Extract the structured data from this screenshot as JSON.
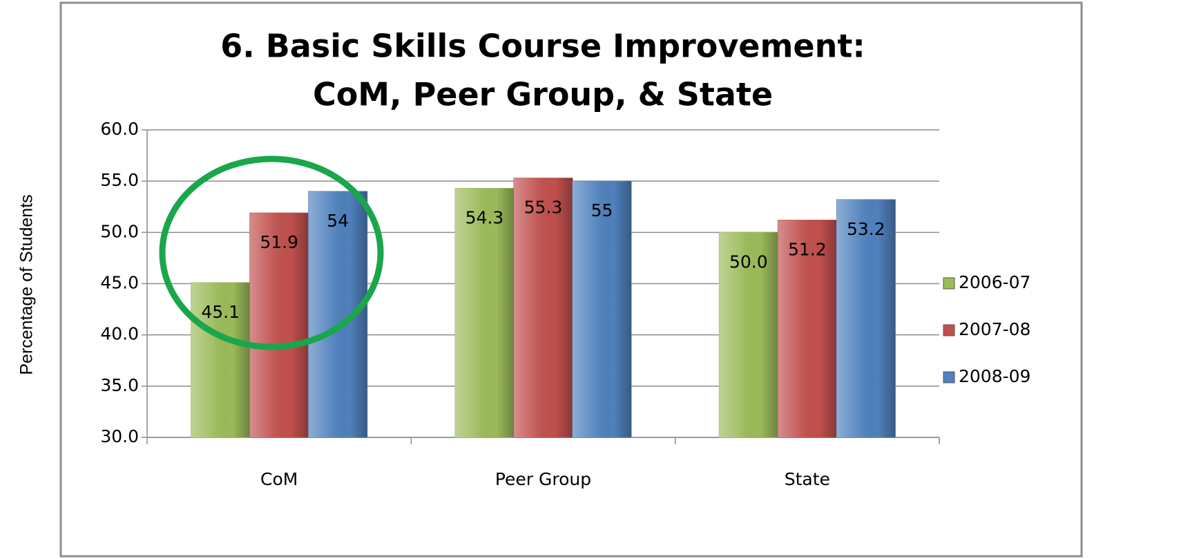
{
  "chart_data": {
    "type": "bar",
    "title": [
      "6. Basic Skills Course Improvement:",
      "CoM, Peer Group, & State"
    ],
    "y_label": "Percentage of Students",
    "categories": [
      "CoM",
      "Peer Group",
      "State"
    ],
    "series": [
      {
        "name": "2006-07",
        "color": "#9bbb59",
        "values": [
          45.1,
          54.3,
          50.0
        ],
        "value_labels": [
          "45.1",
          "54.3",
          "50.0"
        ]
      },
      {
        "name": "2007-08",
        "color": "#c0504d",
        "values": [
          51.9,
          55.3,
          51.2
        ]
      },
      {
        "name": "2008-09",
        "color": "#4f81bd",
        "values": [
          54,
          55,
          53.2
        ]
      }
    ],
    "ylim": [
      30,
      60
    ],
    "yticks": [
      {
        "value": 30,
        "label": "30.0"
      },
      {
        "value": 35,
        "label": "35.0"
      },
      {
        "value": 40,
        "label": "40.0"
      },
      {
        "value": 45,
        "label": "45.0"
      },
      {
        "value": 50,
        "label": "50.0"
      },
      {
        "value": 55,
        "label": "55.0"
      },
      {
        "value": 60,
        "label": "60.0"
      }
    ],
    "grid": true,
    "legend": "right"
  }
}
